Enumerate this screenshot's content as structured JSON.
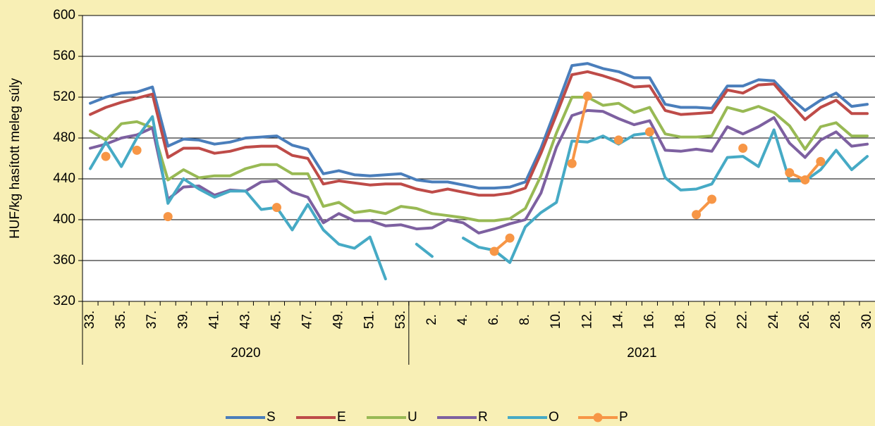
{
  "chart_data": {
    "type": "line",
    "y_label": "HUF/kg hasított meleg súly",
    "ylim": [
      320,
      600
    ],
    "yticks": [
      320,
      360,
      400,
      440,
      480,
      520,
      560,
      600
    ],
    "grid": true,
    "legend": "bottom",
    "categories": [
      "33.",
      null,
      "35.",
      null,
      "37.",
      null,
      "39.",
      null,
      "41.",
      null,
      "43.",
      null,
      "45.",
      null,
      "47.",
      null,
      "49.",
      null,
      "51.",
      null,
      "53.",
      null,
      "2.",
      null,
      "4.",
      null,
      "6.",
      null,
      "8.",
      null,
      "10.",
      null,
      "12.",
      null,
      "14.",
      null,
      "16.",
      null,
      "18.",
      null,
      "20.",
      null,
      "22.",
      null,
      "24.",
      null,
      "26.",
      null,
      "28.",
      null,
      "30."
    ],
    "x_groups": [
      {
        "label": "2020",
        "span": 21
      },
      {
        "label": "2021",
        "span": 30
      }
    ],
    "series": [
      {
        "name": "S",
        "color": "#4a7ebb",
        "values": [
          514,
          520,
          524,
          525,
          530,
          472,
          479,
          478,
          474,
          476,
          480,
          481,
          482,
          473,
          469,
          445,
          448,
          444,
          443,
          444,
          445,
          439,
          437,
          437,
          434,
          431,
          431,
          432,
          437,
          470,
          510,
          551,
          553,
          548,
          545,
          539,
          539,
          513,
          510,
          510,
          509,
          531,
          531,
          537,
          536,
          520,
          507,
          517,
          524,
          511,
          513
        ]
      },
      {
        "name": "E",
        "color": "#be4b48",
        "values": [
          503,
          510,
          515,
          519,
          523,
          461,
          470,
          470,
          465,
          467,
          471,
          472,
          472,
          463,
          460,
          435,
          438,
          436,
          434,
          435,
          435,
          430,
          427,
          430,
          427,
          424,
          424,
          426,
          431,
          465,
          503,
          542,
          545,
          541,
          536,
          530,
          531,
          507,
          503,
          504,
          505,
          527,
          524,
          532,
          533,
          515,
          498,
          510,
          517,
          504,
          504
        ]
      },
      {
        "name": "U",
        "color": "#98b954",
        "values": [
          487,
          478,
          494,
          496,
          490,
          439,
          449,
          441,
          443,
          443,
          450,
          454,
          454,
          445,
          445,
          413,
          417,
          407,
          409,
          406,
          413,
          411,
          406,
          404,
          402,
          399,
          399,
          401,
          411,
          443,
          485,
          520,
          520,
          512,
          514,
          505,
          510,
          484,
          481,
          481,
          482,
          510,
          506,
          511,
          505,
          492,
          469,
          491,
          495,
          482,
          482
        ]
      },
      {
        "name": "R",
        "color": "#7d60a0",
        "values": [
          470,
          474,
          480,
          483,
          490,
          420,
          432,
          433,
          424,
          429,
          428,
          437,
          438,
          427,
          422,
          397,
          406,
          399,
          399,
          394,
          395,
          391,
          392,
          400,
          397,
          387,
          391,
          396,
          400,
          426,
          471,
          502,
          507,
          506,
          499,
          493,
          497,
          468,
          467,
          469,
          467,
          491,
          484,
          491,
          500,
          475,
          461,
          478,
          486,
          472,
          474
        ]
      },
      {
        "name": "O",
        "color": "#46aac5",
        "values": [
          450,
          476,
          452,
          480,
          501,
          416,
          440,
          430,
          422,
          428,
          428,
          410,
          412,
          390,
          415,
          390,
          376,
          372,
          383,
          342,
          null,
          376,
          364,
          null,
          382,
          373,
          370,
          358,
          393,
          407,
          417,
          477,
          476,
          482,
          474,
          483,
          485,
          441,
          429,
          430,
          435,
          461,
          462,
          452,
          488,
          438,
          438,
          449,
          468,
          449,
          462
        ]
      },
      {
        "name": "P",
        "color": "#f79646",
        "marker": true,
        "values": [
          null,
          462,
          null,
          468,
          null,
          403,
          null,
          null,
          null,
          null,
          null,
          null,
          412,
          null,
          null,
          null,
          null,
          null,
          null,
          null,
          null,
          null,
          null,
          null,
          null,
          null,
          369,
          382,
          null,
          null,
          null,
          455,
          521,
          null,
          478,
          null,
          486,
          null,
          null,
          405,
          420,
          null,
          470,
          null,
          null,
          446,
          439,
          457,
          null,
          null,
          null
        ]
      }
    ]
  }
}
